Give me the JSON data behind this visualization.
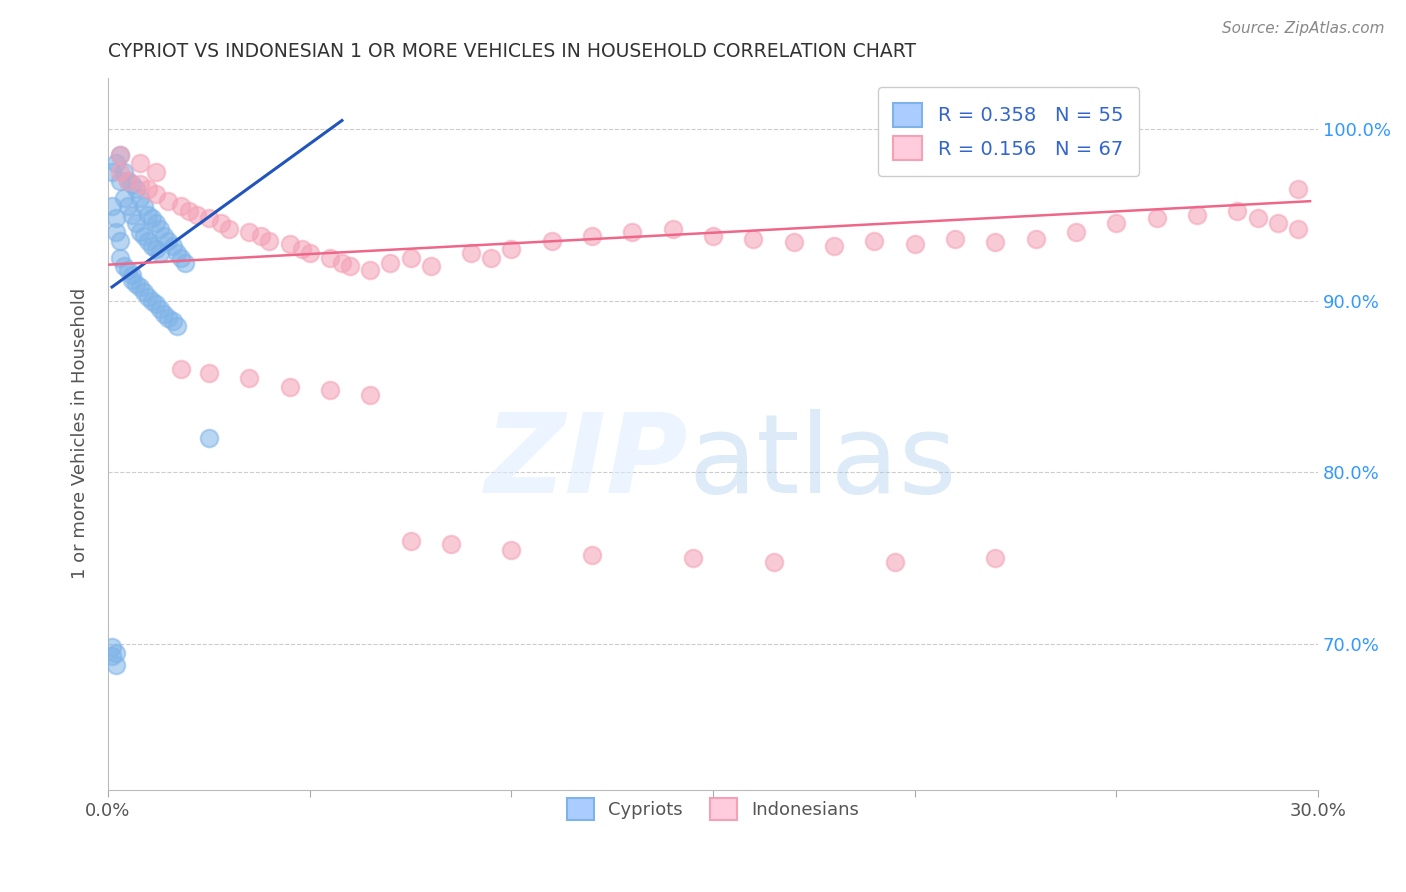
{
  "title": "CYPRIOT VS INDONESIAN 1 OR MORE VEHICLES IN HOUSEHOLD CORRELATION CHART",
  "source": "Source: ZipAtlas.com",
  "ylabel": "1 or more Vehicles in Household",
  "xlim": [
    0.0,
    0.3
  ],
  "ylim": [
    0.615,
    1.03
  ],
  "ytick_positions": [
    0.7,
    0.8,
    0.9,
    1.0
  ],
  "ytick_labels": [
    "70.0%",
    "80.0%",
    "90.0%",
    "100.0%"
  ],
  "cypriot_color": "#7EB3E8",
  "indonesian_color": "#F4A0B5",
  "trendline1_color": "#2255BB",
  "trendline2_color": "#EE6688",
  "grid_color": "#CCCCCC",
  "bg_color": "#FFFFFF",
  "title_color": "#333333",
  "ylabel_color": "#555555",
  "yticklabel_color": "#3399FF",
  "source_color": "#888888",
  "cypriot_x": [
    0.001,
    0.002,
    0.003,
    0.003,
    0.004,
    0.004,
    0.005,
    0.005,
    0.006,
    0.006,
    0.007,
    0.007,
    0.008,
    0.008,
    0.009,
    0.009,
    0.01,
    0.01,
    0.011,
    0.011,
    0.012,
    0.012,
    0.013,
    0.013,
    0.014,
    0.015,
    0.016,
    0.017,
    0.018,
    0.019,
    0.001,
    0.002,
    0.002,
    0.003,
    0.003,
    0.004,
    0.005,
    0.006,
    0.006,
    0.007,
    0.008,
    0.009,
    0.01,
    0.011,
    0.012,
    0.013,
    0.014,
    0.015,
    0.016,
    0.017,
    0.001,
    0.001,
    0.002,
    0.002,
    0.025
  ],
  "cypriot_y": [
    0.975,
    0.98,
    0.985,
    0.97,
    0.975,
    0.96,
    0.97,
    0.955,
    0.968,
    0.95,
    0.965,
    0.945,
    0.96,
    0.94,
    0.955,
    0.938,
    0.95,
    0.935,
    0.948,
    0.932,
    0.945,
    0.93,
    0.942,
    0.928,
    0.938,
    0.935,
    0.932,
    0.928,
    0.925,
    0.922,
    0.955,
    0.948,
    0.94,
    0.935,
    0.925,
    0.92,
    0.918,
    0.915,
    0.912,
    0.91,
    0.908,
    0.905,
    0.902,
    0.9,
    0.898,
    0.895,
    0.892,
    0.89,
    0.888,
    0.885,
    0.698,
    0.693,
    0.695,
    0.688,
    0.82
  ],
  "indonesian_x": [
    0.003,
    0.005,
    0.008,
    0.01,
    0.012,
    0.015,
    0.018,
    0.02,
    0.022,
    0.025,
    0.028,
    0.03,
    0.035,
    0.038,
    0.04,
    0.045,
    0.048,
    0.05,
    0.055,
    0.058,
    0.06,
    0.065,
    0.07,
    0.075,
    0.08,
    0.09,
    0.095,
    0.1,
    0.11,
    0.12,
    0.13,
    0.14,
    0.15,
    0.16,
    0.17,
    0.18,
    0.19,
    0.2,
    0.21,
    0.22,
    0.23,
    0.24,
    0.25,
    0.26,
    0.27,
    0.28,
    0.285,
    0.29,
    0.295,
    0.003,
    0.008,
    0.012,
    0.018,
    0.025,
    0.035,
    0.045,
    0.055,
    0.065,
    0.075,
    0.085,
    0.1,
    0.12,
    0.145,
    0.165,
    0.195,
    0.22,
    0.295
  ],
  "indonesian_y": [
    0.975,
    0.97,
    0.968,
    0.965,
    0.962,
    0.958,
    0.955,
    0.952,
    0.95,
    0.948,
    0.945,
    0.942,
    0.94,
    0.938,
    0.935,
    0.933,
    0.93,
    0.928,
    0.925,
    0.922,
    0.92,
    0.918,
    0.922,
    0.925,
    0.92,
    0.928,
    0.925,
    0.93,
    0.935,
    0.938,
    0.94,
    0.942,
    0.938,
    0.936,
    0.934,
    0.932,
    0.935,
    0.933,
    0.936,
    0.934,
    0.936,
    0.94,
    0.945,
    0.948,
    0.95,
    0.952,
    0.948,
    0.945,
    0.942,
    0.985,
    0.98,
    0.975,
    0.86,
    0.858,
    0.855,
    0.85,
    0.848,
    0.845,
    0.76,
    0.758,
    0.755,
    0.752,
    0.75,
    0.748,
    0.748,
    0.75,
    0.965
  ],
  "trendline1_x": [
    0.001,
    0.058
  ],
  "trendline1_y": [
    0.908,
    1.005
  ],
  "trendline2_x": [
    0.0,
    0.298
  ],
  "trendline2_y": [
    0.921,
    0.958
  ]
}
